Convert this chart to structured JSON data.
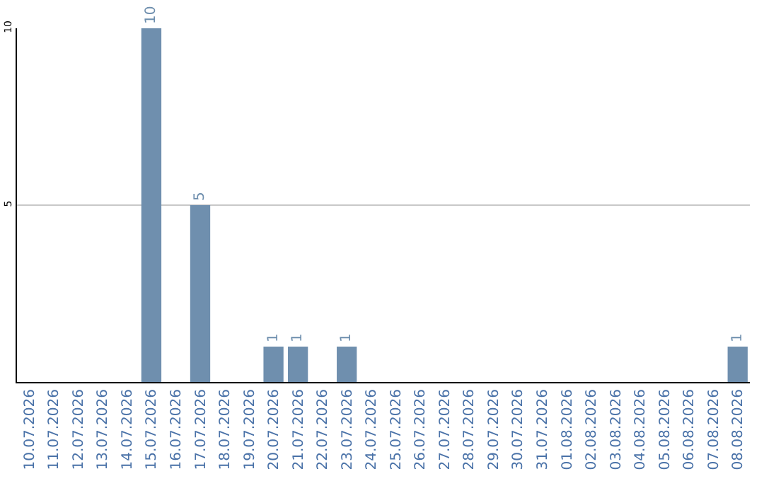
{
  "chart_data": {
    "type": "bar",
    "categories": [
      "10.07.2026",
      "11.07.2026",
      "12.07.2026",
      "13.07.2026",
      "14.07.2026",
      "15.07.2026",
      "16.07.2026",
      "17.07.2026",
      "18.07.2026",
      "19.07.2026",
      "20.07.2026",
      "21.07.2026",
      "22.07.2026",
      "23.07.2026",
      "24.07.2026",
      "25.07.2026",
      "26.07.2026",
      "27.07.2026",
      "28.07.2026",
      "29.07.2026",
      "30.07.2026",
      "31.07.2026",
      "01.08.2026",
      "02.08.2026",
      "03.08.2026",
      "04.08.2026",
      "05.08.2026",
      "06.08.2026",
      "07.08.2026",
      "08.08.2026"
    ],
    "values": [
      0,
      0,
      0,
      0,
      0,
      10,
      0,
      5,
      0,
      0,
      1,
      1,
      0,
      1,
      0,
      0,
      0,
      0,
      0,
      0,
      0,
      0,
      0,
      0,
      0,
      0,
      0,
      0,
      0,
      1
    ],
    "value_labels": [
      null,
      null,
      null,
      null,
      null,
      "10",
      null,
      "5",
      null,
      null,
      "1",
      "1",
      null,
      "1",
      null,
      null,
      null,
      null,
      null,
      null,
      null,
      null,
      null,
      null,
      null,
      null,
      null,
      null,
      null,
      "1"
    ],
    "color": "#6f8fae",
    "ylim": [
      0,
      10
    ],
    "yticks": [
      5,
      10
    ],
    "grid": "y",
    "legend": false
  }
}
